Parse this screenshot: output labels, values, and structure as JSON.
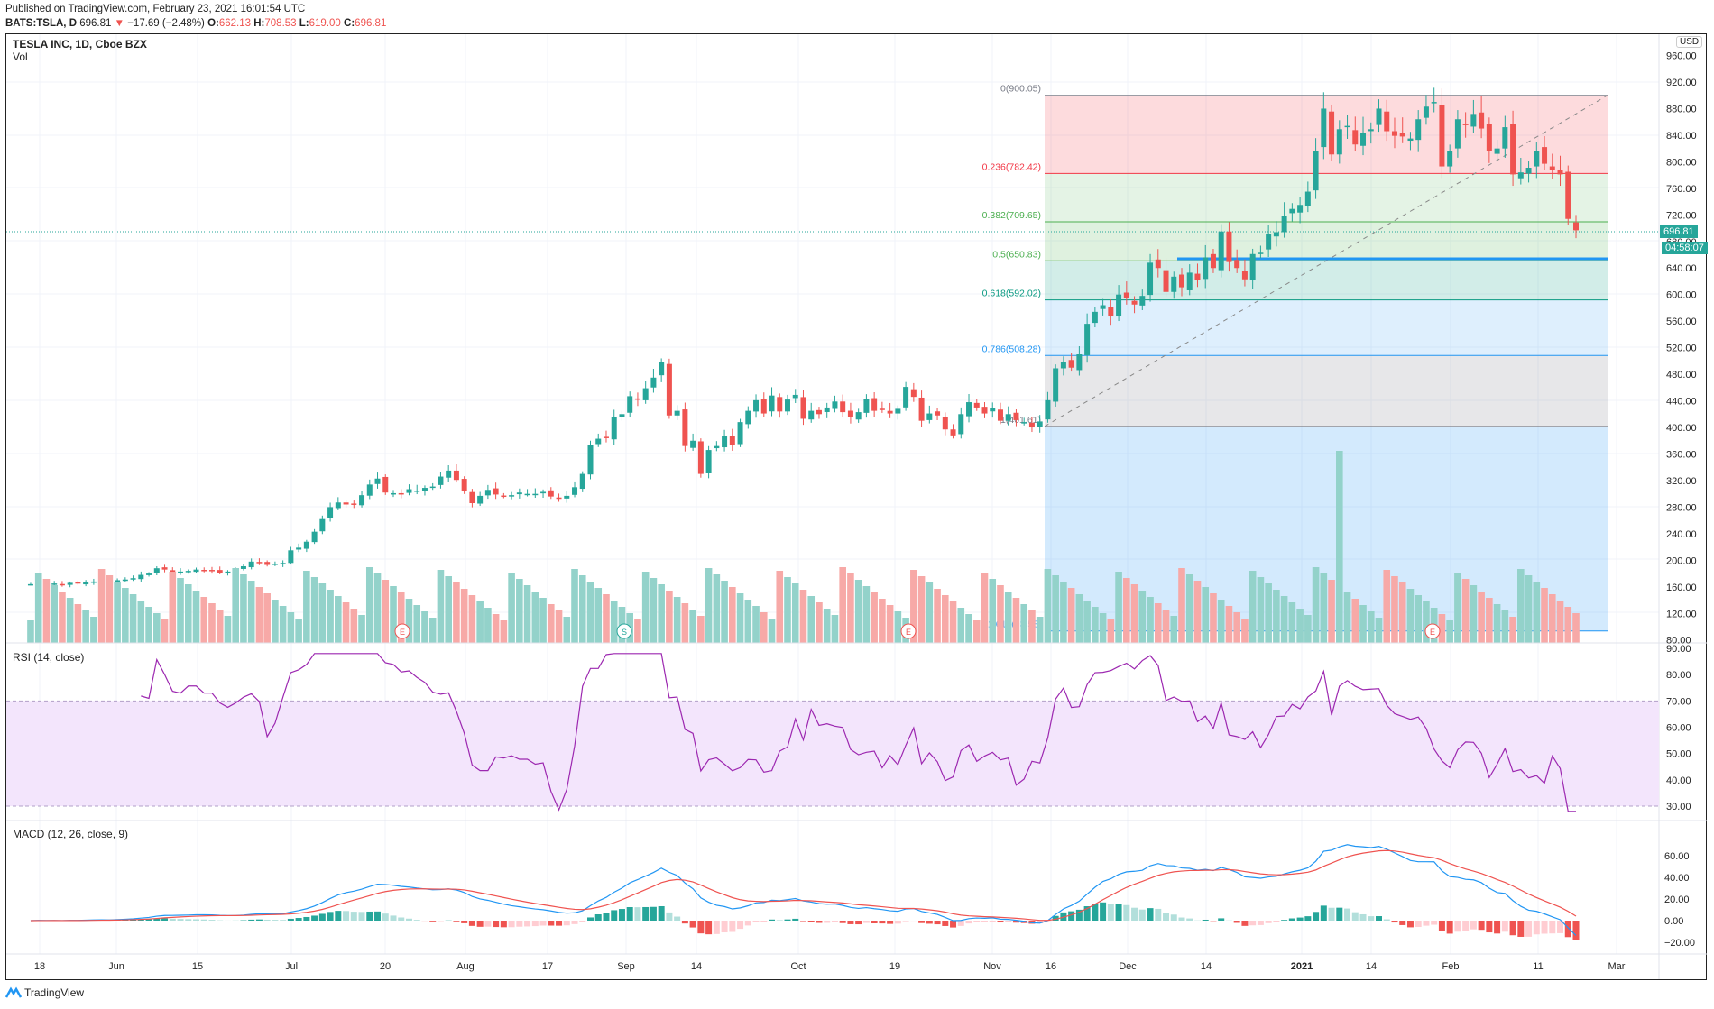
{
  "header": {
    "published": "Published on TradingView.com, February 23, 2021 16:01:54 UTC",
    "symbol_line": "BATS:TSLA, D",
    "last": "696.81",
    "change_icon": "triangle-down-icon",
    "change": "−17.69 (−2.48%)",
    "o_label": "O:",
    "o": "662.13",
    "h_label": "H:",
    "h": "708.53",
    "l_label": "L:",
    "l": "619.00",
    "c_label": "C:",
    "c": "696.81"
  },
  "legends": {
    "title": "TESLA INC, 1D, Cboe BZX",
    "volume": "Vol",
    "rsi": "RSI (14, close)",
    "macd": "MACD (12, 26, close, 9)"
  },
  "price_axis": {
    "currency": "USD",
    "ticks": [
      "960.00",
      "920.00",
      "880.00",
      "840.00",
      "800.00",
      "760.00",
      "720.00",
      "680.00",
      "640.00",
      "600.00",
      "560.00",
      "520.00",
      "480.00",
      "440.00",
      "400.00",
      "360.00",
      "320.00",
      "280.00",
      "240.00",
      "200.00",
      "160.00",
      "120.00",
      "80.00"
    ],
    "last_price_tag": "696.81",
    "countdown_tag": "04:58:07"
  },
  "rsi_axis": {
    "ticks": [
      "90.00",
      "80.00",
      "70.00",
      "60.00",
      "50.00",
      "40.00",
      "30.00"
    ]
  },
  "macd_axis": {
    "ticks": [
      "60.00",
      "40.00",
      "20.00",
      "0.00",
      "−20.00"
    ]
  },
  "time_axis": {
    "labels": [
      "18",
      "Jun",
      "15",
      "Jul",
      "20",
      "Aug",
      "17",
      "Sep",
      "14",
      "Oct",
      "19",
      "Nov",
      "16",
      "Dec",
      "14",
      "2021",
      "14",
      "Feb",
      "11",
      "Mar"
    ]
  },
  "events": [
    {
      "type": "E",
      "label": "E"
    },
    {
      "type": "S",
      "label": "S"
    },
    {
      "type": "E",
      "label": "E"
    },
    {
      "type": "E",
      "label": "E"
    }
  ],
  "fibonacci": {
    "levels": [
      {
        "ratio": "0",
        "price": 900.05,
        "label": "0(900.05)",
        "color": "#787b86"
      },
      {
        "ratio": "0.236",
        "price": 782.42,
        "label": "0.236(782.42)",
        "color": "#f23645"
      },
      {
        "ratio": "0.382",
        "price": 709.65,
        "label": "0.382(709.65)",
        "color": "#4caf50"
      },
      {
        "ratio": "0.5",
        "price": 650.83,
        "label": "0.5(650.83)",
        "color": "#4caf50"
      },
      {
        "ratio": "0.618",
        "price": 592.02,
        "label": "0.618(592.02)",
        "color": "#089981"
      },
      {
        "ratio": "0.786",
        "price": 508.28,
        "label": "0.786(508.28)",
        "color": "#2196f3"
      },
      {
        "ratio": "1",
        "price": 401.61,
        "label": "1(401.61)",
        "color": "#787b86"
      },
      {
        "ratio": "1.618",
        "price": 93.58,
        "label": "1.618(93.58)",
        "color": "#2196f3"
      }
    ]
  },
  "footer": {
    "brand": "TradingView",
    "logo_icon": "tradingview-logo-icon"
  },
  "colors": {
    "up": "#26a69a",
    "down": "#ef5350",
    "vol_up": "#93d2ca",
    "vol_down": "#f7a9a7",
    "rsi_line": "#9c27b0",
    "rsi_band": "#f3e5fc",
    "macd_line": "#2196f3",
    "signal_line": "#ef5350"
  },
  "chart_data": {
    "type": "candlestick",
    "title": "TESLA INC, 1D, Cboe BZX",
    "ylabel": "USD",
    "ylim": [
      80,
      960
    ],
    "x_range": "mid-May 2020 to Feb 23 2021 (daily)",
    "closes": [
      164,
      167,
      163,
      165,
      163,
      166,
      165,
      167,
      168,
      167,
      166,
      170,
      171,
      173,
      178,
      180,
      188,
      186,
      181,
      183,
      184,
      186,
      185,
      184,
      181,
      183,
      186,
      191,
      198,
      197,
      193,
      195,
      196,
      215,
      219,
      228,
      243,
      262,
      280,
      287,
      284,
      285,
      298,
      314,
      323,
      302,
      301,
      300,
      307,
      305,
      309,
      311,
      326,
      335,
      321,
      305,
      286,
      297,
      306,
      299,
      297,
      298,
      302,
      300,
      300,
      303,
      296,
      293,
      297,
      310,
      330,
      374,
      383,
      384,
      415,
      420,
      447,
      442,
      459,
      475,
      498,
      418,
      425,
      372,
      380,
      330,
      366,
      372,
      387,
      373,
      408,
      425,
      441,
      421,
      448,
      424,
      442,
      449,
      413,
      425,
      420,
      430,
      439,
      423,
      415,
      423,
      443,
      425,
      427,
      421,
      428,
      461,
      446,
      410,
      421,
      418,
      397,
      388,
      420,
      438,
      430,
      421,
      429,
      410,
      420,
      411,
      408,
      400,
      409,
      441,
      489,
      499,
      490,
      510,
      556,
      574,
      584,
      567,
      600,
      595,
      585,
      598,
      648,
      640,
      604,
      627,
      611,
      633,
      622,
      656,
      640,
      695,
      649,
      640,
      623,
      661,
      663,
      691,
      694,
      719,
      729,
      735,
      755,
      816,
      880,
      811,
      849,
      854,
      826,
      844,
      849,
      880,
      846,
      839,
      838,
      835,
      864,
      883,
      890,
      793,
      816,
      864,
      855,
      872,
      850,
      816,
      820,
      852,
      781,
      784,
      791,
      816,
      797,
      787,
      781,
      714,
      696.81
    ],
    "series_rsi": "RSI(14) oscillating 35–85, ending ~32",
    "series_macd": "MACD line peaks ~72 in Jan 2021, ends ~−12; signal ends ~9; histogram ends ~−20"
  }
}
